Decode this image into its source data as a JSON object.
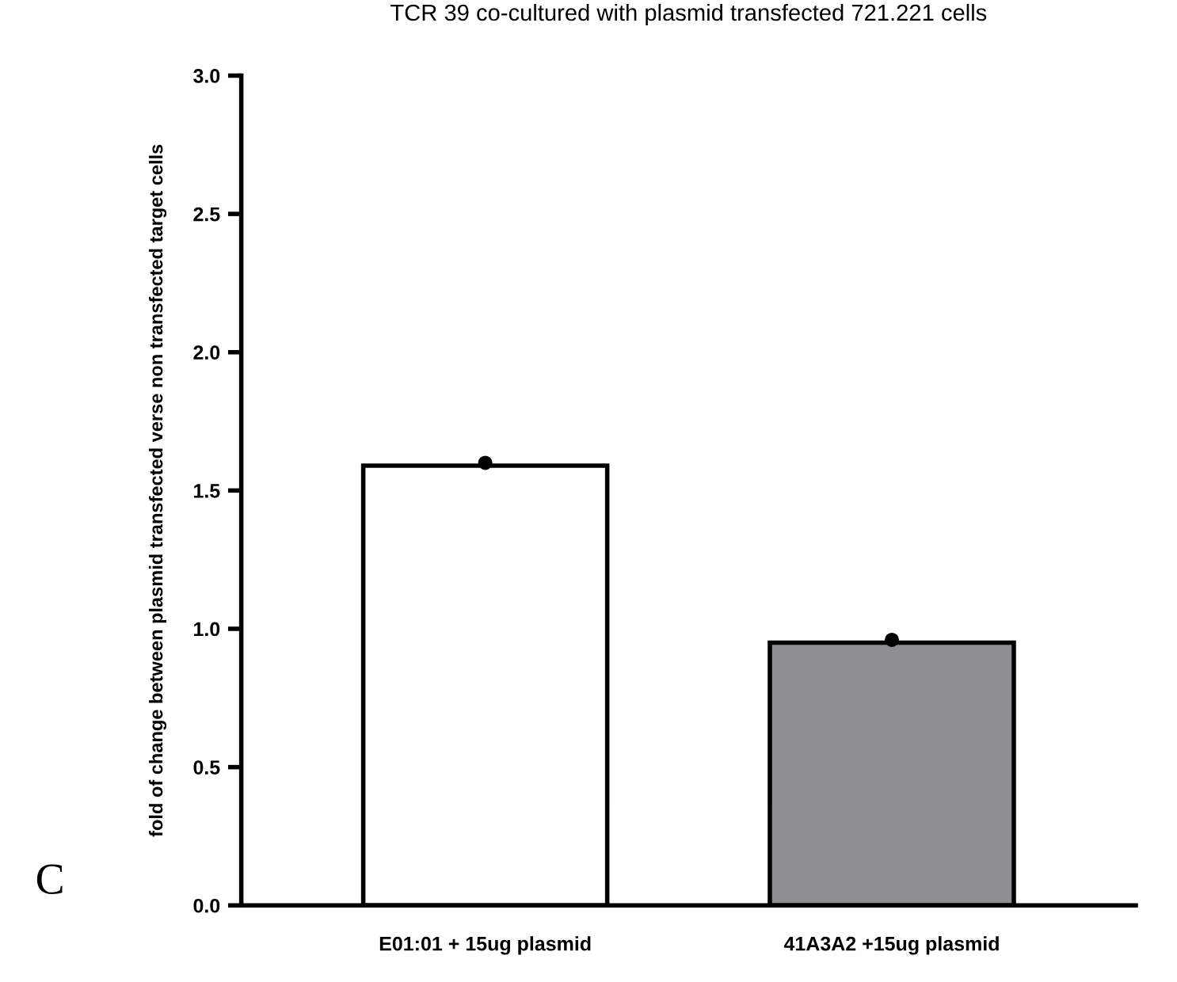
{
  "chart_data": {
    "type": "bar",
    "title": "TCR 39 co-cultured with plasmid transfected 721.221 cells",
    "ylabel": "fold of change between plasmid transfected verse non transfected target cells",
    "categories": [
      "E01:01 + 15ug plasmid",
      "41A3A2 +15ug plasmid"
    ],
    "series": [
      {
        "colors": [
          "#ffffff",
          "#8f8e93"
        ],
        "values": [
          1.59,
          0.95
        ]
      },
      {
        "type": "scatter",
        "color": "#000000",
        "x": [
          "E01:01 + 15ug plasmid",
          "41A3A2 +15ug plasmid"
        ],
        "values": [
          1.6,
          0.96
        ]
      }
    ],
    "ylim": [
      0,
      3.0
    ],
    "yticks": [
      {
        "value": 0,
        "label": "0.0"
      },
      {
        "value": 0.5,
        "label": "0.5"
      },
      {
        "value": 1.0,
        "label": "1.0"
      },
      {
        "value": 1.5,
        "label": "1.5"
      },
      {
        "value": 2.0,
        "label": "2.0"
      },
      {
        "value": 2.5,
        "label": "2.5"
      },
      {
        "value": 3.0,
        "label": "3.0"
      }
    ],
    "marker": "circle",
    "grid": false,
    "annotations": [
      "C"
    ]
  }
}
